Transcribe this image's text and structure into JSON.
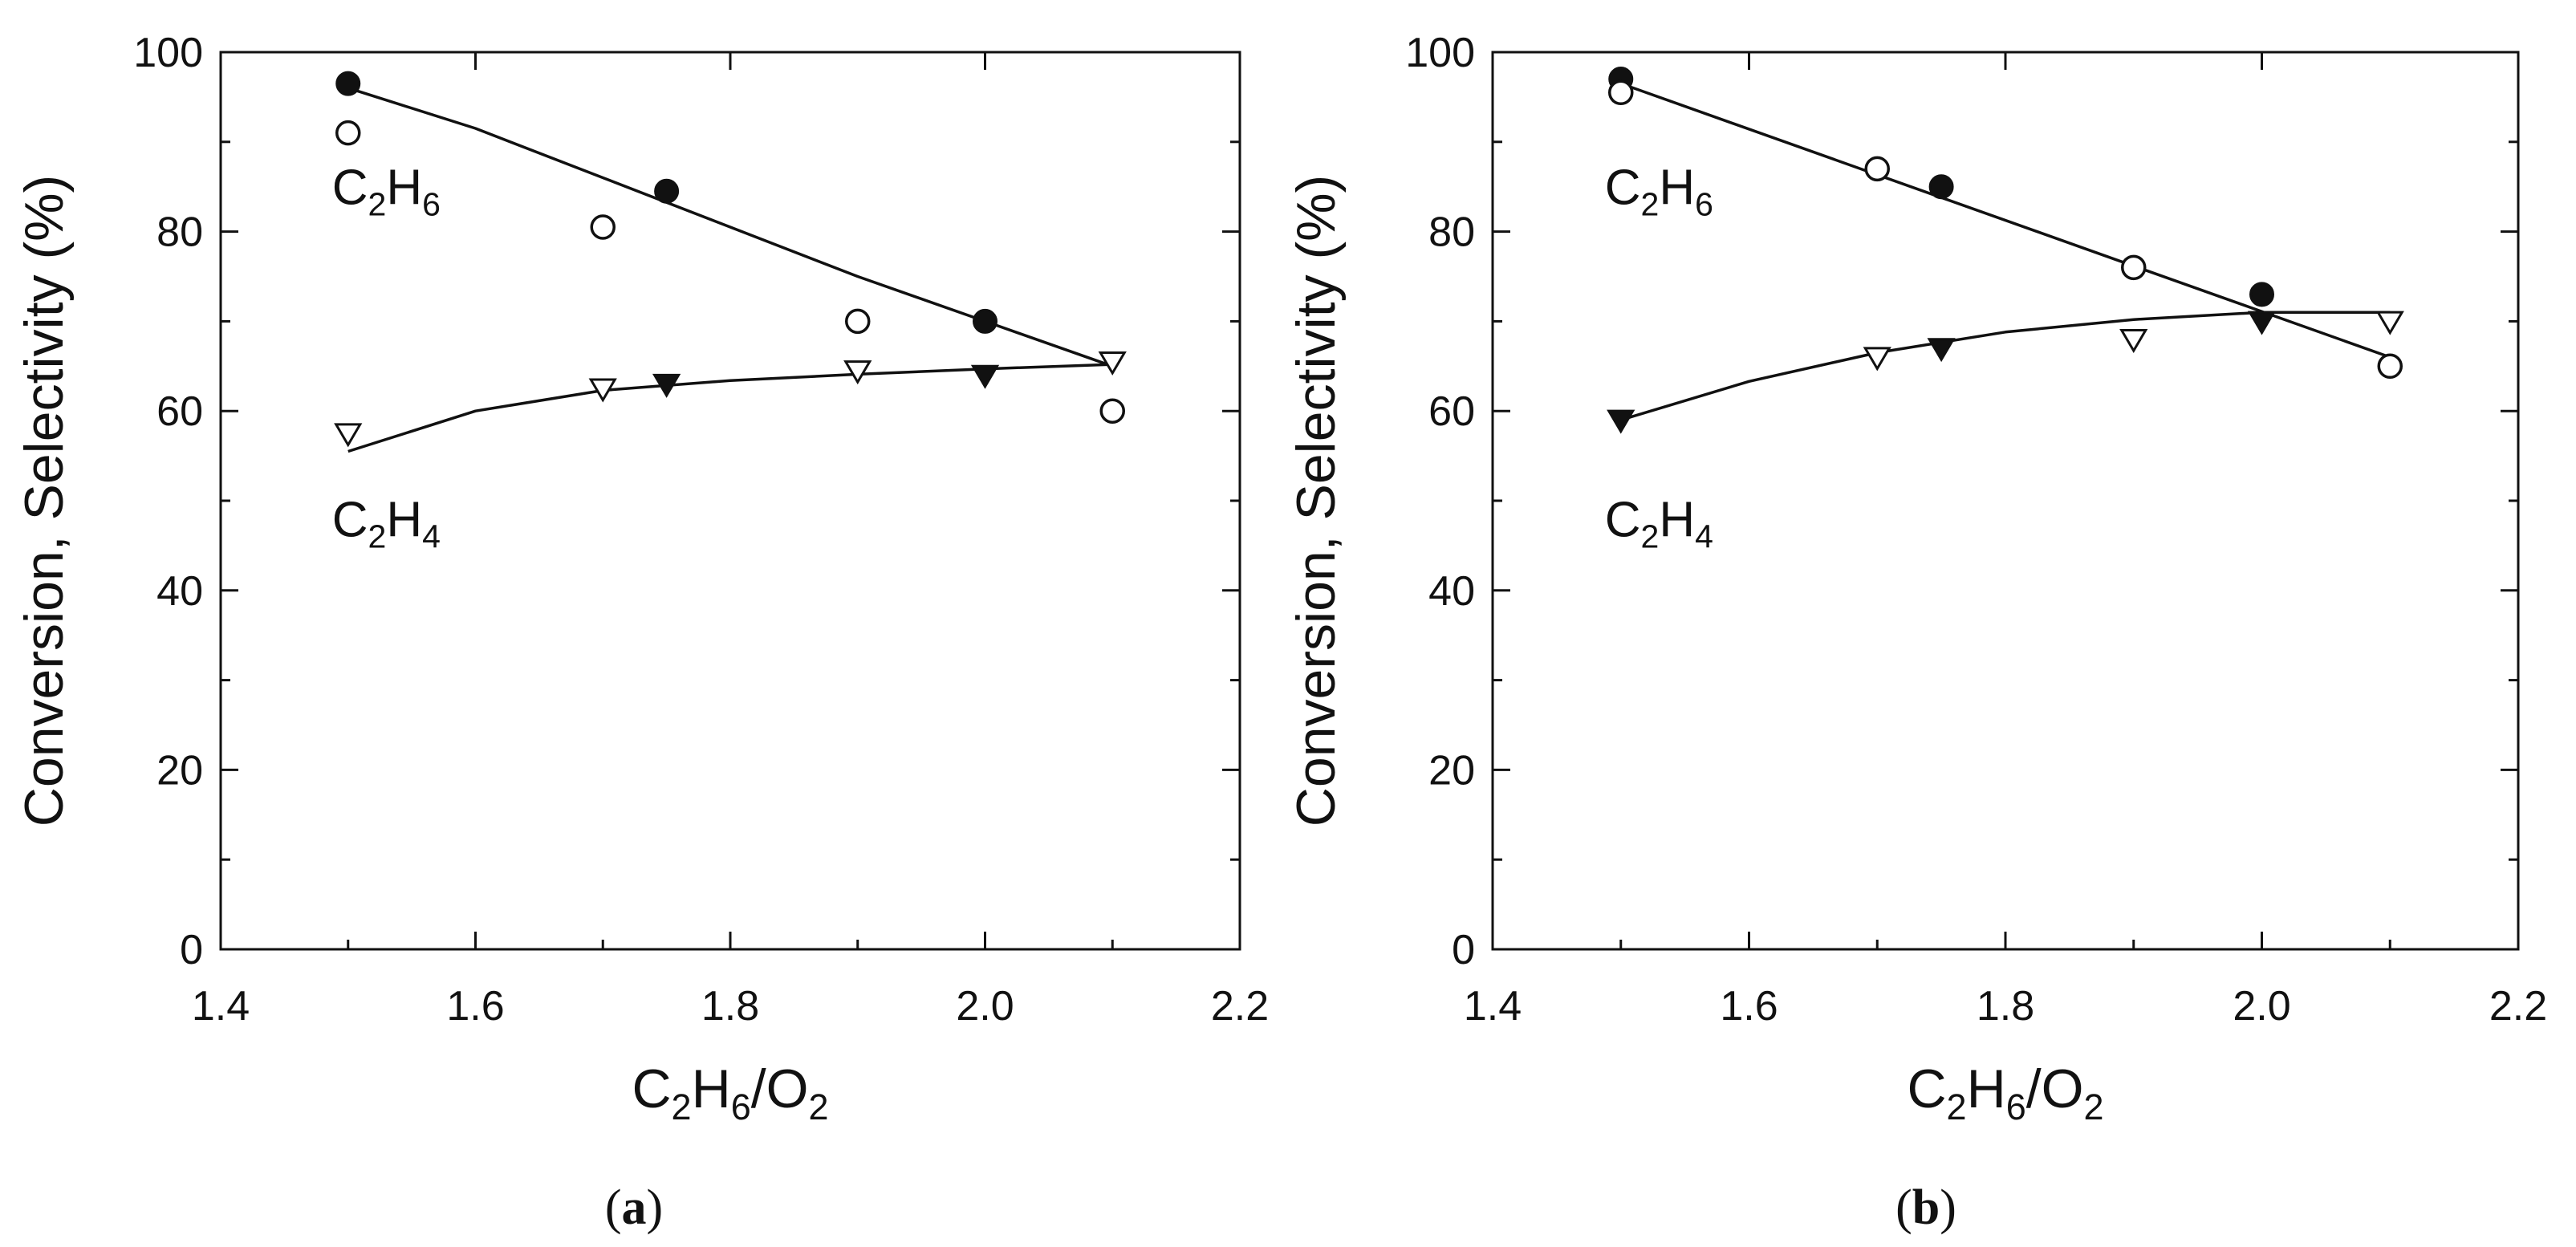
{
  "figure": {
    "panels": [
      "(a)",
      "(b)"
    ]
  },
  "chart_data": [
    {
      "type": "scatter",
      "panel": "a",
      "panel_label_letter": "a",
      "xlabel": "C2H6/O2",
      "ylabel": "Conversion, Selectivity (%)",
      "xlim": [
        1.4,
        2.2
      ],
      "ylim": [
        0,
        100
      ],
      "xticks": [
        1.4,
        1.6,
        1.8,
        2.0,
        2.2
      ],
      "xtick_labels": [
        "1.4",
        "1.6",
        "1.8",
        "2.0",
        "2.2"
      ],
      "yticks": [
        0,
        20,
        40,
        60,
        80,
        100
      ],
      "ytick_labels": [
        "0",
        "20",
        "40",
        "60",
        "80",
        "100"
      ],
      "annotations": [
        {
          "text": "C2H6",
          "x": 1.5,
          "y": 85
        },
        {
          "text": "C2H4",
          "x": 1.5,
          "y": 48
        }
      ],
      "series": [
        {
          "name": "C2H6 conversion (filled)",
          "marker": "filled-circle",
          "x": [
            1.5,
            1.75,
            2.0
          ],
          "y": [
            96.5,
            84.5,
            70
          ]
        },
        {
          "name": "C2H6 conversion (open)",
          "marker": "open-circle",
          "x": [
            1.5,
            1.7,
            1.9,
            2.1
          ],
          "y": [
            91,
            80.5,
            70,
            60
          ]
        },
        {
          "name": "C2H4 selectivity (filled)",
          "marker": "filled-triangle-down",
          "x": [
            1.75,
            2.0
          ],
          "y": [
            63,
            64
          ]
        },
        {
          "name": "C2H4 selectivity (open)",
          "marker": "open-triangle-down",
          "x": [
            1.5,
            1.7,
            1.9,
            2.1
          ],
          "y": [
            57.5,
            62.5,
            64.5,
            65.5
          ]
        }
      ],
      "fits": [
        {
          "name": "C2H6 fit",
          "x": [
            1.5,
            1.6,
            1.7,
            1.8,
            1.9,
            2.0,
            2.1
          ],
          "y": [
            96,
            91.5,
            86,
            80.5,
            75,
            70,
            65
          ]
        },
        {
          "name": "C2H4 fit",
          "x": [
            1.5,
            1.6,
            1.7,
            1.8,
            1.9,
            2.0,
            2.1
          ],
          "y": [
            55.5,
            60,
            62.3,
            63.4,
            64.1,
            64.7,
            65.2
          ]
        }
      ]
    },
    {
      "type": "scatter",
      "panel": "b",
      "panel_label_letter": "b",
      "xlabel": "C2H6/O2",
      "ylabel": "Conversion, Selectivity (%)",
      "xlim": [
        1.4,
        2.2
      ],
      "ylim": [
        0,
        100
      ],
      "xticks": [
        1.4,
        1.6,
        1.8,
        2.0,
        2.2
      ],
      "xtick_labels": [
        "1.4",
        "1.6",
        "1.8",
        "2.0",
        "2.2"
      ],
      "yticks": [
        0,
        20,
        40,
        60,
        80,
        100
      ],
      "ytick_labels": [
        "0",
        "20",
        "40",
        "60",
        "80",
        "100"
      ],
      "annotations": [
        {
          "text": "C2H6",
          "x": 1.5,
          "y": 85
        },
        {
          "text": "C2H4",
          "x": 1.5,
          "y": 48
        }
      ],
      "series": [
        {
          "name": "C2H6 conversion (filled)",
          "marker": "filled-circle",
          "x": [
            1.5,
            1.75,
            2.0
          ],
          "y": [
            97,
            85,
            73
          ]
        },
        {
          "name": "C2H6 conversion (open)",
          "marker": "open-circle",
          "x": [
            1.5,
            1.7,
            1.9,
            2.1
          ],
          "y": [
            95.5,
            87,
            76,
            65
          ]
        },
        {
          "name": "C2H4 selectivity (filled)",
          "marker": "filled-triangle-down",
          "x": [
            1.5,
            1.75,
            2.0
          ],
          "y": [
            59,
            67,
            70
          ]
        },
        {
          "name": "C2H4 selectivity (open)",
          "marker": "open-triangle-down",
          "x": [
            1.7,
            1.9,
            2.1
          ],
          "y": [
            66,
            68,
            70
          ]
        }
      ],
      "fits": [
        {
          "name": "C2H6 fit",
          "x": [
            1.5,
            2.1
          ],
          "y": [
            96.5,
            66
          ]
        },
        {
          "name": "C2H4 fit",
          "x": [
            1.5,
            1.6,
            1.7,
            1.8,
            1.9,
            2.0,
            2.1
          ],
          "y": [
            59,
            63.3,
            66.5,
            68.8,
            70.2,
            71,
            71
          ]
        }
      ]
    }
  ]
}
